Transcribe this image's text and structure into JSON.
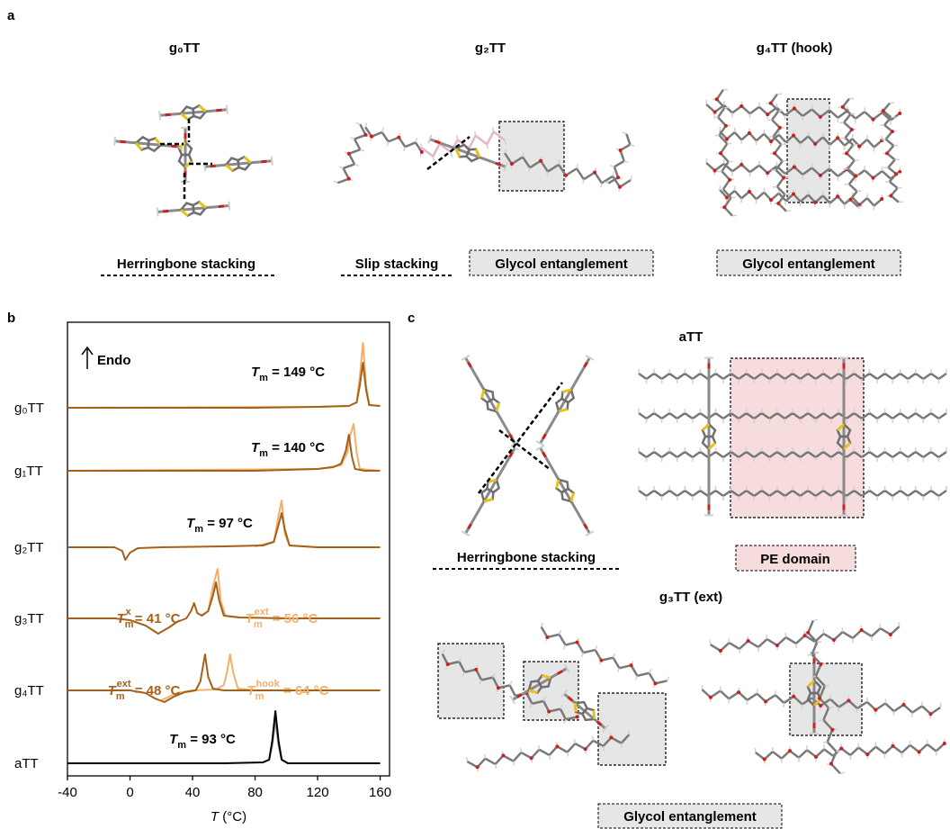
{
  "panel_labels": [
    "a",
    "b",
    "c"
  ],
  "panel_a": {
    "titles": [
      "g₀TT",
      "g₂TT",
      "g₄TT (hook)"
    ],
    "labels": [
      "Herringbone stacking",
      "Slip stacking",
      "Glycol entanglement",
      "Glycol entanglement"
    ]
  },
  "chart_data": {
    "type": "line",
    "xlim": [
      -40,
      166
    ],
    "xticks": [
      -40,
      0,
      40,
      80,
      120,
      160
    ],
    "xlabel": {
      "symbol": "T",
      "text": " (°C)"
    },
    "ylabel": "Endo",
    "rows": [
      {
        "label": "g₀TT",
        "series": [
          {
            "color": "#f2b06a",
            "x": [
              -40,
              120,
              140,
              145,
              147,
              149,
              151,
              153,
              160
            ],
            "values": [
              0,
              1,
              2,
              6,
              35,
              72,
              25,
              3,
              2
            ]
          },
          {
            "color": "#a5601a",
            "x": [
              -40,
              0,
              40,
              80,
              120,
              140,
              145,
              147,
              149,
              151,
              153,
              160
            ],
            "values": [
              0,
              0,
              0,
              0,
              1,
              2,
              6,
              25,
              50,
              20,
              3,
              2
            ]
          }
        ],
        "annotations": [
          {
            "symbol": "T",
            "sub": "m",
            "text": " = 149 °C",
            "color": "#000000"
          }
        ]
      },
      {
        "label": "g₁TT",
        "series": [
          {
            "color": "#f2b06a",
            "x": [
              -40,
              120,
              135,
              139,
              141,
              143,
              145,
              147,
              160
            ],
            "values": [
              0,
              2,
              6,
              20,
              40,
              52,
              20,
              2,
              0
            ]
          },
          {
            "color": "#a5601a",
            "x": [
              -40,
              0,
              80,
              120,
              130,
              135,
              138,
              140,
              142,
              144,
              150,
              160
            ],
            "values": [
              0,
              0,
              0,
              2,
              4,
              8,
              22,
              40,
              15,
              2,
              0,
              0
            ]
          }
        ],
        "annotations": [
          {
            "symbol": "T",
            "sub": "m",
            "text": " = 140 °C",
            "color": "#000000"
          }
        ]
      },
      {
        "label": "g₂TT",
        "series": [
          {
            "color": "#f2b06a",
            "x": [
              80,
              92,
              95,
              97,
              99,
              102,
              120
            ],
            "values": [
              1,
              6,
              35,
              52,
              15,
              2,
              0
            ]
          },
          {
            "color": "#a5601a",
            "x": [
              -40,
              -10,
              -5,
              -3,
              0,
              5,
              20,
              60,
              85,
              92,
              95,
              97,
              99,
              102,
              120,
              160
            ],
            "values": [
              0,
              0,
              -4,
              -14,
              -6,
              -1,
              0,
              1,
              2,
              6,
              25,
              38,
              20,
              2,
              0,
              0
            ]
          }
        ],
        "annotations": [
          {
            "symbol": "T",
            "sub": "m",
            "text": " = 97 °C",
            "color": "#000000"
          }
        ]
      },
      {
        "label": "g₃TT",
        "series": [
          {
            "color": "#f2b06a",
            "x": [
              45,
              50,
              53,
              56,
              58,
              61,
              70
            ],
            "values": [
              3,
              8,
              35,
              55,
              20,
              3,
              1
            ]
          },
          {
            "color": "#a5601a",
            "x": [
              -40,
              -10,
              0,
              10,
              18,
              25,
              30,
              36,
              39,
              41,
              43,
              46,
              50,
              53,
              55,
              57,
              60,
              70,
              100,
              160
            ],
            "values": [
              0,
              0,
              -2,
              -8,
              -17,
              -10,
              -4,
              0,
              8,
              17,
              6,
              3,
              8,
              25,
              40,
              20,
              3,
              1,
              0,
              0
            ]
          }
        ],
        "annotations": [
          {
            "symbol": "T",
            "sub": "m",
            "sup": "x",
            "text": " = 41 °C",
            "color": "#a5601a"
          },
          {
            "symbol": "T",
            "sub": "m",
            "sup": "ext",
            "text": " = 56 °C",
            "color": "#f2b06a"
          }
        ]
      },
      {
        "label": "g₄TT",
        "series": [
          {
            "color": "#f2b06a",
            "x": [
              20,
              30,
              40,
              55,
              60,
              62,
              64,
              66,
              69,
              80,
              160
            ],
            "values": [
              -11,
              -3,
              0,
              1,
              6,
              20,
              40,
              20,
              2,
              0,
              0
            ]
          },
          {
            "color": "#a5601a",
            "x": [
              -40,
              0,
              10,
              16,
              22,
              28,
              35,
              42,
              45,
              48,
              50,
              53,
              60,
              100,
              160
            ],
            "values": [
              0,
              0,
              -3,
              -9,
              -13,
              -7,
              -2,
              0,
              10,
              40,
              15,
              2,
              0,
              0,
              0
            ]
          }
        ],
        "annotations": [
          {
            "symbol": "T",
            "sub": "m",
            "sup": "ext",
            "text": " = 48 °C",
            "color": "#a5601a"
          },
          {
            "symbol": "T",
            "sub": "m",
            "sup": "hook",
            "text": " = 64 °C",
            "color": "#f2b06a"
          }
        ]
      },
      {
        "label": "aTT",
        "series": [
          {
            "color": "#999999",
            "x": [
              85,
              89,
              91,
              93,
              95,
              97,
              101
            ],
            "values": [
              1,
              4,
              20,
              48,
              20,
              4,
              0
            ]
          },
          {
            "color": "#000000",
            "x": [
              -40,
              60,
              85,
              89,
              91,
              93,
              95,
              97,
              101,
              160
            ],
            "values": [
              0,
              0,
              1,
              4,
              25,
              58,
              25,
              4,
              0,
              0
            ]
          }
        ],
        "annotations": [
          {
            "symbol": "T",
            "sub": "m",
            "text": " = 93 °C",
            "color": "#000000"
          }
        ]
      }
    ]
  },
  "panel_c": {
    "titles": [
      "aTT",
      "g₃TT (ext)"
    ],
    "labels": [
      "Herringbone stacking",
      "PE domain",
      "Glycol entanglement"
    ]
  }
}
